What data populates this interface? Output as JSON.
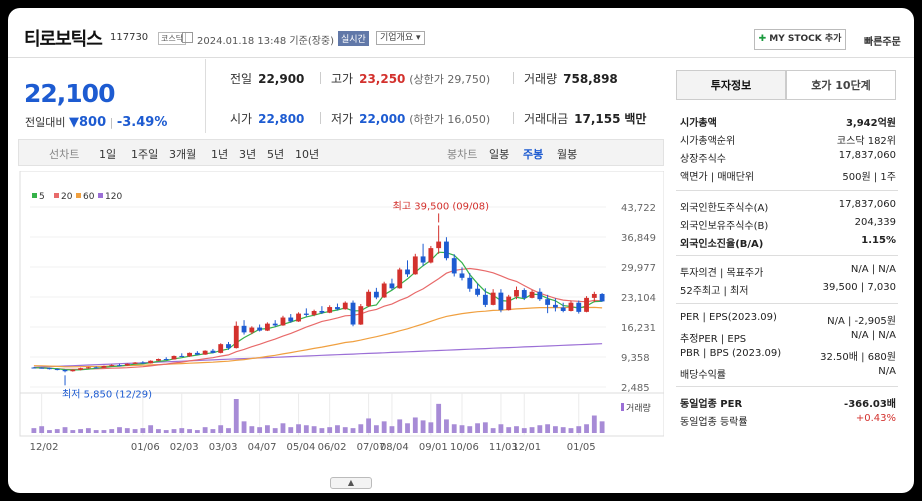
{
  "header": {
    "name": "티로보틱스",
    "code": "117730",
    "market": "코스닥",
    "datetime": "2024.01.18 13:48 기준(장중)",
    "live": "실시간",
    "company_info": "기업개요",
    "mystock": "MY STOCK 추가",
    "quick_order": "빠른주문"
  },
  "price": {
    "current": "22,100",
    "change_label": "전일대비",
    "change": "800",
    "change_pct": "-3.49%"
  },
  "quote": {
    "prev_close_label": "전일",
    "prev_close": "22,900",
    "high_label": "고가",
    "high": "23,250",
    "upper_limit": "(상한가 29,750)",
    "volume_label": "거래량",
    "volume": "758,898",
    "open_label": "시가",
    "open": "22,800",
    "low_label": "저가",
    "low": "22,000",
    "lower_limit": "(하한가 16,050)",
    "amount_label": "거래대금",
    "amount": "17,155",
    "amount_unit": "백만"
  },
  "toolbar": {
    "line_header": "선차트",
    "line_periods": [
      "1일",
      "1주일",
      "3개월",
      "1년",
      "3년",
      "5년",
      "10년"
    ],
    "candle_header": "봉차트",
    "candle_periods": [
      "일봉",
      "주봉",
      "월봉"
    ],
    "active_candle": "주봉"
  },
  "chart_data": {
    "type": "candlestick",
    "legend": [
      "5",
      "20",
      "60",
      "120"
    ],
    "ma_colors": {
      "5": "#36b24a",
      "20": "#e86a6a",
      "60": "#f0a040",
      "120": "#9b6fd6"
    },
    "up_color": "#d3312d",
    "down_color": "#1d5bd1",
    "y_ticks": [
      "43,722",
      "36,849",
      "29,977",
      "23,104",
      "16,231",
      "9,358",
      "2,485"
    ],
    "ylim": [
      2485,
      43722
    ],
    "x_ticks": [
      "12/02",
      "01/06",
      "02/03",
      "03/03",
      "04/07",
      "05/04",
      "06/02",
      "07/07",
      "08/04",
      "09/01",
      "10/06",
      "11/03",
      "12/01",
      "01/05"
    ],
    "high_note": "최고 39,500 (09/08)",
    "low_note": "최저 5,850 (12/29)",
    "volume_label": "거래량",
    "candles": [
      [
        6950,
        7050,
        6800,
        6900
      ],
      [
        6900,
        7000,
        6700,
        6800
      ],
      [
        6800,
        6900,
        6500,
        6600
      ],
      [
        6600,
        6750,
        6300,
        6400
      ],
      [
        6400,
        6500,
        5850,
        6100
      ],
      [
        6100,
        6500,
        6000,
        6400
      ],
      [
        6400,
        6900,
        6300,
        6800
      ],
      [
        6800,
        7100,
        6700,
        7000
      ],
      [
        7000,
        7200,
        6800,
        6900
      ],
      [
        6900,
        7400,
        6850,
        7300
      ],
      [
        7300,
        7700,
        7200,
        7500
      ],
      [
        7500,
        7800,
        7300,
        7400
      ],
      [
        7400,
        7900,
        7350,
        7800
      ],
      [
        7800,
        8200,
        7700,
        8100
      ],
      [
        8100,
        8400,
        7800,
        7900
      ],
      [
        7900,
        8600,
        7850,
        8500
      ],
      [
        8500,
        9000,
        8400,
        8900
      ],
      [
        8900,
        9300,
        8700,
        8800
      ],
      [
        8800,
        9700,
        8750,
        9600
      ],
      [
        9600,
        10200,
        9400,
        9500
      ],
      [
        9500,
        10400,
        9400,
        10300
      ],
      [
        10300,
        10700,
        9800,
        9900
      ],
      [
        9900,
        10900,
        9850,
        10800
      ],
      [
        10800,
        11200,
        10200,
        10300
      ],
      [
        10300,
        12500,
        10200,
        12300
      ],
      [
        12300,
        12800,
        11000,
        11400
      ],
      [
        11400,
        17500,
        11300,
        16500
      ],
      [
        16500,
        17800,
        14500,
        15000
      ],
      [
        15000,
        16400,
        14600,
        16100
      ],
      [
        16100,
        16800,
        15200,
        15400
      ],
      [
        15400,
        17300,
        15300,
        17000
      ],
      [
        17000,
        17800,
        16300,
        16600
      ],
      [
        16600,
        18800,
        16500,
        18400
      ],
      [
        18400,
        19200,
        17200,
        17500
      ],
      [
        17500,
        19600,
        17400,
        19300
      ],
      [
        19300,
        20500,
        18600,
        19000
      ],
      [
        19000,
        20200,
        18700,
        19900
      ],
      [
        19900,
        21000,
        19200,
        19500
      ],
      [
        19500,
        21200,
        19400,
        20800
      ],
      [
        20800,
        21600,
        20000,
        20300
      ],
      [
        20300,
        22100,
        20200,
        21800
      ],
      [
        21800,
        22300,
        16400,
        16800
      ],
      [
        16800,
        21500,
        16700,
        21000
      ],
      [
        21000,
        24800,
        20800,
        24300
      ],
      [
        24300,
        25200,
        22600,
        23000
      ],
      [
        23000,
        26600,
        22900,
        26200
      ],
      [
        26200,
        27300,
        24700,
        25100
      ],
      [
        25100,
        29800,
        25000,
        29400
      ],
      [
        29400,
        31500,
        27700,
        28300
      ],
      [
        28300,
        33000,
        28200,
        32400
      ],
      [
        32400,
        35300,
        30200,
        31000
      ],
      [
        31000,
        34800,
        30800,
        34300
      ],
      [
        34300,
        39500,
        33000,
        35800
      ],
      [
        35800,
        36800,
        31500,
        32000
      ],
      [
        32000,
        32900,
        27800,
        28500
      ],
      [
        28500,
        29900,
        26900,
        27500
      ],
      [
        27500,
        28600,
        24300,
        25000
      ],
      [
        25000,
        26200,
        23200,
        23600
      ],
      [
        23600,
        25100,
        20800,
        21300
      ],
      [
        21300,
        24900,
        21200,
        24100
      ],
      [
        24100,
        24900,
        19600,
        20100
      ],
      [
        20100,
        23600,
        20000,
        23200
      ],
      [
        23200,
        25500,
        22600,
        24700
      ],
      [
        24700,
        25100,
        22400,
        22900
      ],
      [
        22900,
        24700,
        22800,
        24300
      ],
      [
        24300,
        25100,
        22200,
        22600
      ],
      [
        22600,
        23600,
        19400,
        21300
      ],
      [
        21300,
        22800,
        19800,
        20700
      ],
      [
        20700,
        21800,
        19600,
        19900
      ],
      [
        19900,
        22300,
        19800,
        21800
      ],
      [
        21800,
        22300,
        19300,
        19700
      ],
      [
        19700,
        23300,
        19600,
        22900
      ],
      [
        22900,
        24300,
        21900,
        23800
      ],
      [
        23800,
        24000,
        22000,
        22100
      ]
    ],
    "volumes": [
      5,
      7,
      3,
      4,
      6,
      3,
      4,
      5,
      3,
      3,
      4,
      6,
      5,
      4,
      5,
      8,
      4,
      3,
      4,
      5,
      4,
      3,
      6,
      4,
      8,
      5,
      35,
      12,
      7,
      6,
      8,
      5,
      10,
      6,
      9,
      8,
      7,
      5,
      6,
      8,
      6,
      5,
      9,
      15,
      8,
      12,
      7,
      14,
      10,
      16,
      13,
      11,
      30,
      14,
      9,
      8,
      7,
      10,
      11,
      5,
      9,
      6,
      7,
      5,
      6,
      8,
      9,
      7,
      6,
      5,
      7,
      9,
      18,
      12
    ]
  },
  "right_panel": {
    "tab_invest": "투자정보",
    "tab_hoga": "호가 10단계",
    "rows1": [
      {
        "k": "시가총액",
        "v": "3,942억원",
        "b": true
      },
      {
        "k": "시가총액순위",
        "v": "코스닥 182위",
        "b": false
      },
      {
        "k": "상장주식수",
        "v": "17,837,060",
        "b": false
      },
      {
        "k": "액면가 | 매매단위",
        "v": "500원 | 1주",
        "b": false
      }
    ],
    "rows2": [
      {
        "k": "외국인한도주식수(A)",
        "v": "17,837,060",
        "b": false
      },
      {
        "k": "외국인보유주식수(B)",
        "v": "204,339",
        "b": false
      },
      {
        "k": "외국인소진율(B/A)",
        "v": "1.15%",
        "b": true
      }
    ],
    "rows3": [
      {
        "k": "투자의견 | 목표주가",
        "v": "N/A | N/A",
        "b": false
      },
      {
        "k": "52주최고 | 최저",
        "v": "39,500 | 7,030",
        "b": false
      }
    ],
    "rows4": [
      {
        "k": "PER | EPS(2023.09)",
        "v": "N/A | -2,905원",
        "b": false
      },
      {
        "k": "추정PER | EPS",
        "v": "N/A | N/A",
        "b": false
      },
      {
        "k": "PBR | BPS (2023.09)",
        "v": "32.50배 | 680원",
        "b": false
      },
      {
        "k": "배당수익률",
        "v": "N/A",
        "b": false
      }
    ],
    "rows5": [
      {
        "k": "동일업종 PER",
        "v": "-366.03배",
        "b": true,
        "red": false
      },
      {
        "k": "동일업종 등락률",
        "v": "+0.43%",
        "b": false,
        "red": true
      }
    ]
  }
}
